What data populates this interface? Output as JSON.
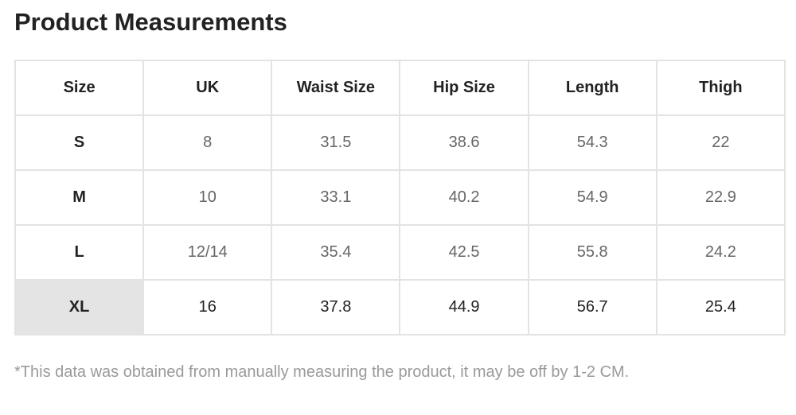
{
  "title": "Product Measurements",
  "table": {
    "headers": [
      "Size",
      "UK",
      "Waist Size",
      "Hip Size",
      "Length",
      "Thigh"
    ],
    "rows": [
      [
        "S",
        "8",
        "31.5",
        "38.6",
        "54.3",
        "22"
      ],
      [
        "M",
        "10",
        "33.1",
        "40.2",
        "54.9",
        "22.9"
      ],
      [
        "L",
        "12/14",
        "35.4",
        "42.5",
        "55.8",
        "24.2"
      ],
      [
        "XL",
        "16",
        "37.8",
        "44.9",
        "56.7",
        "25.4"
      ]
    ],
    "highlighted_row": "XL",
    "highlight_color": "#e4e4e4"
  },
  "note": "*This data was obtained from manually measuring the product, it may be off by 1-2 CM."
}
